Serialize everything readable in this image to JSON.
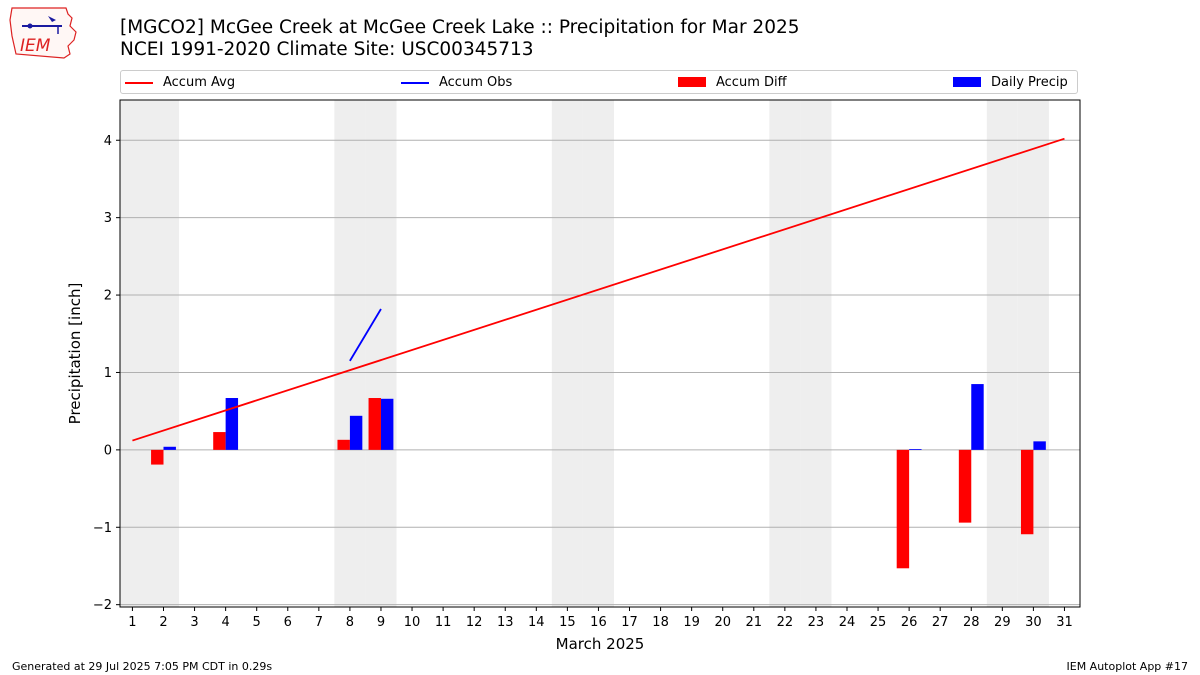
{
  "title_line1": "[MGCO2] McGee Creek at McGee Creek Lake :: Precipitation for Mar 2025",
  "title_line2": "NCEI 1991-2020 Climate Site: USC00345713",
  "logo_text": "IEM",
  "footer_left": "Generated at 29 Jul 2025 7:05 PM CDT in 0.29s",
  "footer_right": "IEM Autoplot App #17",
  "colors": {
    "avg": "#ff0000",
    "obs": "#0000ff",
    "diff": "#ff0000",
    "daily": "#0000ff",
    "weekend": "#eeeeee",
    "grid": "#b0b0b0"
  },
  "chart_data": {
    "type": "bar",
    "xlabel": "March 2025",
    "ylabel": "Precipitation [inch]",
    "xlim": [
      0.6,
      31.5
    ],
    "ylim": [
      -2.03,
      4.52
    ],
    "yticks": [
      -2,
      -1,
      0,
      1,
      2,
      3,
      4
    ],
    "ytick_labels": [
      "−2",
      "−1",
      "0",
      "1",
      "2",
      "3",
      "4"
    ],
    "days": [
      1,
      2,
      3,
      4,
      5,
      6,
      7,
      8,
      9,
      10,
      11,
      12,
      13,
      14,
      15,
      16,
      17,
      18,
      19,
      20,
      21,
      22,
      23,
      24,
      25,
      26,
      27,
      28,
      29,
      30,
      31
    ],
    "weekend_days": [
      1,
      2,
      8,
      9,
      15,
      16,
      22,
      23,
      29,
      30
    ],
    "grid": "y",
    "legend": {
      "placement": "top",
      "entries": [
        {
          "key": "avg",
          "label": "Accum Avg",
          "kind": "line"
        },
        {
          "key": "obs",
          "label": "Accum Obs",
          "kind": "line"
        },
        {
          "key": "diff",
          "label": "Accum Diff",
          "kind": "bar"
        },
        {
          "key": "daily",
          "label": "Daily Precip",
          "kind": "bar"
        }
      ]
    },
    "series": [
      {
        "name": "Accum Avg",
        "kind": "line",
        "x": [
          1,
          31
        ],
        "y": [
          0.12,
          4.02
        ]
      },
      {
        "name": "Accum Obs",
        "kind": "line",
        "x": [
          8,
          9
        ],
        "y": [
          1.15,
          1.82
        ]
      },
      {
        "name": "Accum Diff",
        "kind": "bar",
        "x": [
          2,
          4,
          8,
          9,
          26,
          28,
          30
        ],
        "y": [
          -0.19,
          0.23,
          0.13,
          0.67,
          -1.53,
          -0.94,
          -1.09
        ]
      },
      {
        "name": "Daily Precip",
        "kind": "bar",
        "x": [
          2,
          4,
          8,
          9,
          26,
          28,
          30
        ],
        "y": [
          0.04,
          0.67,
          0.44,
          0.66,
          0.01,
          0.85,
          0.11
        ]
      }
    ]
  }
}
